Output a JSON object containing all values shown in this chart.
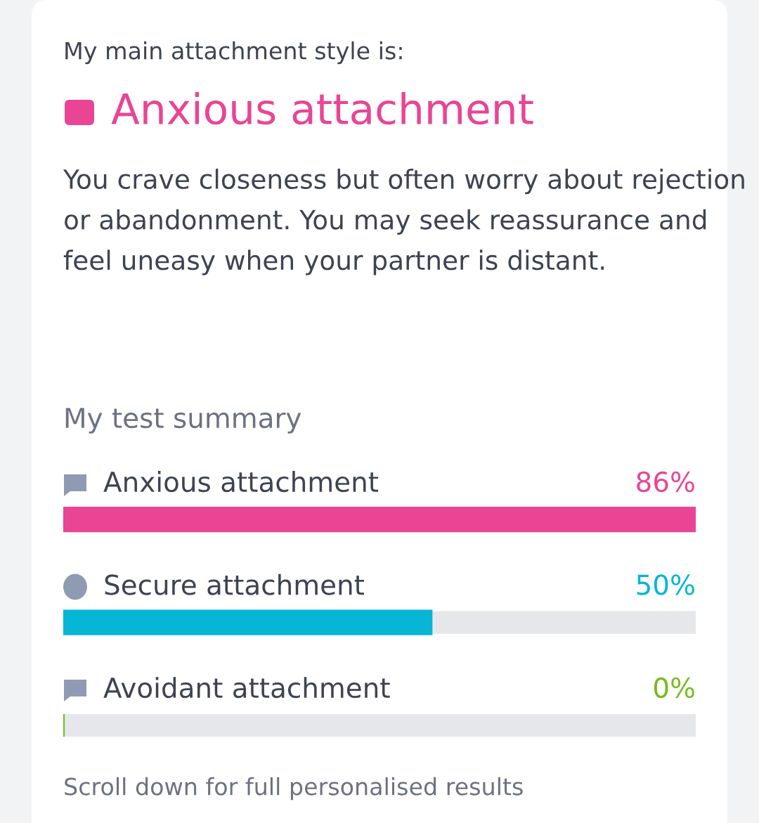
{
  "chart_data": {
    "type": "bar",
    "orientation": "horizontal",
    "subtitle": "My main attachment style is:",
    "title": "Anxious attachment",
    "annotations": [
      "You crave closeness but often worry about rejection or abandonment. You may seek reassurance and feel uneasy when your partner is distant.",
      "My test summary",
      "Scroll down for full personalised results"
    ],
    "categories": [
      "Anxious attachment",
      "Secure attachment",
      "Avoidant attachment"
    ],
    "values": [
      86,
      50,
      0
    ],
    "colors": [
      "#e94594",
      "#06b6d4",
      "#77bb1f"
    ],
    "value_labels": [
      "86%",
      "50%",
      "0%"
    ]
  }
}
